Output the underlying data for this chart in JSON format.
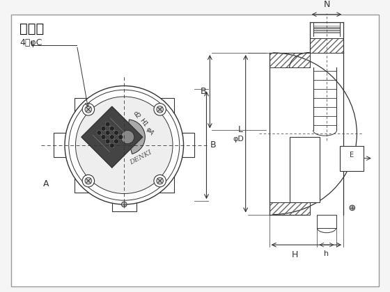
{
  "bg_color": "#f5f5f5",
  "line_color": "#333333",
  "title": "寸法図",
  "label_4phiC": "4－φC",
  "label_A": "A",
  "label_B": "B",
  "label_phiD": "φD",
  "label_L": "L",
  "label_N": "N",
  "label_H": "H",
  "label_h": "h",
  "label_E": "E",
  "label_denki": "DENKI",
  "label_d2": "d2",
  "label_H1": "H1",
  "label_phiA": "φA"
}
